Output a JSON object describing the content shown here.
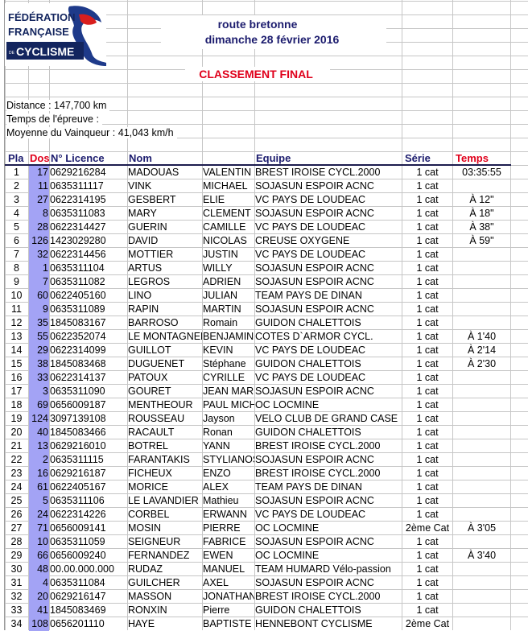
{
  "header": {
    "logo_text": [
      "FÉDÉRATION",
      "FRANÇAISE",
      "DE",
      "CYCLISME"
    ],
    "event_name": "route bretonne",
    "event_date": "dimanche 28 février 2016",
    "title": "CLASSEMENT FINAL"
  },
  "info": {
    "distance": "Distance : 147,700 km",
    "duration": "Temps de l'épreuve :",
    "average": "Moyenne du Vainqueur : 41,043 km/h"
  },
  "colors": {
    "navy": "#1c1c6e",
    "red": "#e0001b",
    "dos_highlight": "#a3a3f5"
  },
  "table": {
    "columns": {
      "pla": "Pla",
      "dos": "Dos",
      "licence": "N° Licence",
      "nom": "Nom",
      "equipe": "Equipe",
      "serie": "Série",
      "temps": "Temps"
    },
    "rows": [
      [
        "1",
        "17",
        "0629216284",
        "MADOUAS",
        "VALENTIN",
        "BREST IROISE CYCL.2000",
        "1 cat",
        "03:35:55"
      ],
      [
        "2",
        "11",
        "0635311117",
        "VINK",
        "MICHAEL",
        "SOJASUN ESPOIR ACNC",
        "1 cat",
        ""
      ],
      [
        "3",
        "27",
        "0622314195",
        "GESBERT",
        "ELIE",
        "VC PAYS DE LOUDEAC",
        "1 cat",
        "À 12\""
      ],
      [
        "4",
        "8",
        "0635311083",
        "MARY",
        "CLEMENT",
        "SOJASUN ESPOIR ACNC",
        "1 cat",
        "À 18\""
      ],
      [
        "5",
        "28",
        "0622314427",
        "GUERIN",
        "CAMILLE",
        "VC PAYS DE LOUDEAC",
        "1 cat",
        "À 38\""
      ],
      [
        "6",
        "126",
        "1423029280",
        "DAVID",
        "NICOLAS",
        "CREUSE OXYGENE",
        "1 cat",
        "À 59\""
      ],
      [
        "7",
        "32",
        "0622314456",
        "MOTTIER",
        "JUSTIN",
        "VC PAYS DE LOUDEAC",
        "1 cat",
        ""
      ],
      [
        "8",
        "1",
        "0635311104",
        "ARTUS",
        "WILLY",
        "SOJASUN ESPOIR ACNC",
        "1 cat",
        ""
      ],
      [
        "9",
        "7",
        "0635311082",
        "LEGROS",
        "ADRIEN",
        "SOJASUN ESPOIR ACNC",
        "1 cat",
        ""
      ],
      [
        "10",
        "60",
        "0622405160",
        "LINO",
        "JULIAN",
        "TEAM PAYS DE DINAN",
        "1 cat",
        ""
      ],
      [
        "11",
        "9",
        "0635311089",
        "RAPIN",
        "MARTIN",
        "SOJASUN ESPOIR ACNC",
        "1 cat",
        ""
      ],
      [
        "12",
        "35",
        "1845083167",
        "BARROSO",
        "Romain",
        "GUIDON CHALETTOIS",
        "1 cat",
        ""
      ],
      [
        "13",
        "55",
        "0622352074",
        "LE MONTAGNER",
        "BENJAMIN",
        "COTES D`ARMOR CYCL.",
        "1 cat",
        "À 1'40"
      ],
      [
        "14",
        "29",
        "0622314099",
        "GUILLOT",
        "KEVIN",
        "VC PAYS DE LOUDEAC",
        "1 cat",
        "À 2'14"
      ],
      [
        "15",
        "38",
        "1845083468",
        "DUGUENET",
        "Stéphane",
        "GUIDON CHALETTOIS",
        "1 cat",
        "À 2'30"
      ],
      [
        "16",
        "33",
        "0622314137",
        "PATOUX",
        "CYRILLE",
        "VC PAYS DE LOUDEAC",
        "1 cat",
        ""
      ],
      [
        "17",
        "3",
        "0635311090",
        "GOURET",
        "JEAN MARC",
        "SOJASUN ESPOIR ACNC",
        "1 cat",
        ""
      ],
      [
        "18",
        "69",
        "0656009187",
        "MENTHEOUR",
        "PAUL MICHEL",
        "OC LOCMINE",
        "1 cat",
        ""
      ],
      [
        "19",
        "124",
        "3097139108",
        "ROUSSEAU",
        "Jayson",
        "VELO CLUB DE GRAND CASE",
        "1 cat",
        ""
      ],
      [
        "20",
        "40",
        "1845083466",
        "RACAULT",
        "Ronan",
        "GUIDON CHALETTOIS",
        "1 cat",
        ""
      ],
      [
        "21",
        "13",
        "0629216010",
        "BOTREL",
        "YANN",
        "BREST IROISE CYCL.2000",
        "1 cat",
        ""
      ],
      [
        "22",
        "2",
        "0635311115",
        "FARANTAKIS",
        "STYLIANOS",
        "SOJASUN ESPOIR ACNC",
        "1 cat",
        ""
      ],
      [
        "23",
        "16",
        "0629216187",
        "FICHEUX",
        "ENZO",
        "BREST IROISE CYCL.2000",
        "1 cat",
        ""
      ],
      [
        "24",
        "61",
        "0622405167",
        "MORICE",
        "ALEX",
        "TEAM PAYS DE DINAN",
        "1 cat",
        ""
      ],
      [
        "25",
        "5",
        "0635311106",
        "LE LAVANDIER",
        "Mathieu",
        "SOJASUN ESPOIR ACNC",
        "1 cat",
        ""
      ],
      [
        "26",
        "24",
        "0622314226",
        "CORBEL",
        "ERWANN",
        "VC PAYS DE LOUDEAC",
        "1 cat",
        ""
      ],
      [
        "27",
        "71",
        "0656009141",
        "MOSIN",
        "PIERRE",
        "OC LOCMINE",
        "2ème Cat",
        "À 3'05"
      ],
      [
        "28",
        "10",
        "0635311059",
        "SEIGNEUR",
        "FABRICE",
        "SOJASUN ESPOIR ACNC",
        "1 cat",
        ""
      ],
      [
        "29",
        "66",
        "0656009240",
        "FERNANDEZ",
        "EWEN",
        "OC LOCMINE",
        "1 cat",
        "À 3'40"
      ],
      [
        "30",
        "48",
        "00.00.000.000",
        "RUDAZ",
        "MANUEL",
        "TEAM HUMARD Vélo-passion",
        "1 cat",
        ""
      ],
      [
        "31",
        "4",
        "0635311084",
        "GUILCHER",
        "AXEL",
        "SOJASUN ESPOIR ACNC",
        "1 cat",
        ""
      ],
      [
        "32",
        "20",
        "0629216147",
        "MASSON",
        "JONATHAN",
        "BREST IROISE CYCL.2000",
        "1 cat",
        ""
      ],
      [
        "33",
        "41",
        "1845083469",
        "RONXIN",
        "Pierre",
        "GUIDON CHALETTOIS",
        "1 cat",
        ""
      ],
      [
        "34",
        "108",
        "0656201110",
        "HAYE",
        "BAPTISTE",
        "HENNEBONT CYCLISME",
        "2ème Cat",
        ""
      ]
    ]
  }
}
